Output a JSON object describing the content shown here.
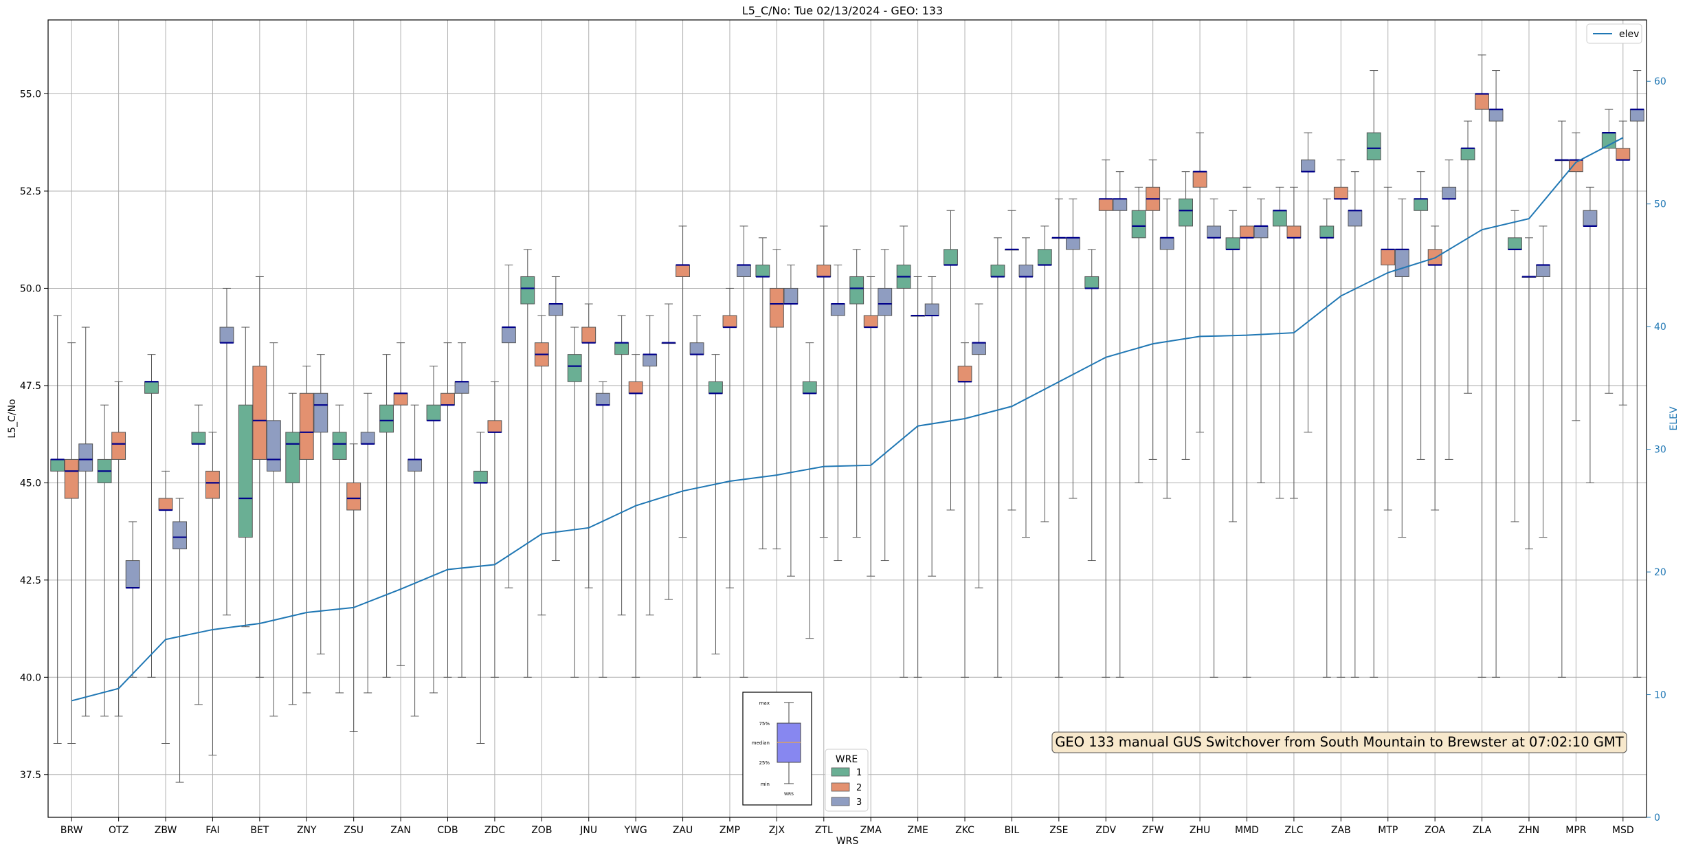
{
  "chart_data": {
    "type": "box",
    "title": "L5_C/No: Tue 02/13/2024 - GEO: 133",
    "xlabel": "WRS",
    "ylabel": "L5_C/No",
    "y2label": "ELEV",
    "ylim": [
      36.4,
      56.9
    ],
    "y2lim": [
      0,
      65
    ],
    "yticks": [
      "37.5",
      "40.0",
      "42.5",
      "45.0",
      "47.5",
      "50.0",
      "52.5",
      "55.0"
    ],
    "y2ticks": [
      "0",
      "10",
      "20",
      "30",
      "40",
      "50",
      "60"
    ],
    "grid": true,
    "legend_wre": {
      "title": "WRE",
      "entries": [
        {
          "name": "1",
          "color": "#6aaf94"
        },
        {
          "name": "2",
          "color": "#e39170"
        },
        {
          "name": "3",
          "color": "#8f9dc1"
        }
      ]
    },
    "legend_elev": {
      "label": "elev",
      "color": "#1f77b4",
      "placement": "top-right"
    },
    "box_key": {
      "labels": [
        "max",
        "75%",
        "median",
        "25%",
        "min"
      ],
      "xlabel": "WRS"
    },
    "annotation": "GEO 133 manual GUS Switchover from South Mountain to Brewster at 07:02:10 GMT",
    "categories": [
      "BRW",
      "OTZ",
      "ZBW",
      "FAI",
      "BET",
      "ZNY",
      "ZSU",
      "ZAN",
      "CDB",
      "ZDC",
      "ZOB",
      "JNU",
      "YWG",
      "ZAU",
      "ZMP",
      "ZJX",
      "ZTL",
      "ZMA",
      "ZME",
      "ZKC",
      "BIL",
      "ZSE",
      "ZDV",
      "ZFW",
      "ZHU",
      "MMD",
      "ZLC",
      "ZAB",
      "MTP",
      "ZOA",
      "ZLA",
      "ZHN",
      "MPR",
      "MSD"
    ],
    "elev": [
      9.5,
      10.5,
      14.5,
      15.3,
      15.8,
      16.7,
      17.1,
      18.6,
      20.2,
      20.6,
      23.1,
      23.6,
      25.4,
      26.6,
      27.4,
      27.9,
      28.6,
      28.7,
      31.9,
      32.5,
      33.5,
      35.5,
      37.5,
      38.6,
      39.2,
      39.3,
      39.5,
      42.5,
      44.4,
      45.6,
      47.9,
      48.8,
      53.4,
      55.4
    ],
    "boxes": [
      [
        {
          "wre": 1,
          "min": 38.3,
          "q1": 45.3,
          "med": 45.6,
          "q3": 45.6,
          "max": 49.3
        },
        {
          "wre": 2,
          "min": 38.3,
          "q1": 44.6,
          "med": 45.3,
          "q3": 45.6,
          "max": 48.6
        },
        {
          "wre": 3,
          "min": 39.0,
          "q1": 45.3,
          "med": 45.6,
          "q3": 46.0,
          "max": 49.0
        }
      ],
      [
        {
          "wre": 1,
          "min": 39.0,
          "q1": 45.0,
          "med": 45.3,
          "q3": 45.6,
          "max": 47.0
        },
        {
          "wre": 2,
          "min": 39.0,
          "q1": 45.6,
          "med": 46.0,
          "q3": 46.3,
          "max": 47.6
        },
        {
          "wre": 3,
          "min": 40.0,
          "q1": 42.3,
          "med": 42.3,
          "q3": 43.0,
          "max": 44.0
        }
      ],
      [
        {
          "wre": 1,
          "min": 40.0,
          "q1": 47.3,
          "med": 47.6,
          "q3": 47.6,
          "max": 48.3
        },
        {
          "wre": 2,
          "min": 38.3,
          "q1": 44.3,
          "med": 44.3,
          "q3": 44.6,
          "max": 45.3
        },
        {
          "wre": 3,
          "min": 37.3,
          "q1": 43.3,
          "med": 43.6,
          "q3": 44.0,
          "max": 44.6
        }
      ],
      [
        {
          "wre": 1,
          "min": 39.3,
          "q1": 46.0,
          "med": 46.0,
          "q3": 46.3,
          "max": 47.0
        },
        {
          "wre": 2,
          "min": 38.0,
          "q1": 44.6,
          "med": 45.0,
          "q3": 45.3,
          "max": 46.3
        },
        {
          "wre": 3,
          "min": 41.6,
          "q1": 48.6,
          "med": 48.6,
          "q3": 49.0,
          "max": 50.0
        }
      ],
      [
        {
          "wre": 1,
          "min": 41.3,
          "q1": 43.6,
          "med": 44.6,
          "q3": 47.0,
          "max": 49.0
        },
        {
          "wre": 2,
          "min": 40.0,
          "q1": 45.6,
          "med": 46.6,
          "q3": 48.0,
          "max": 50.3
        },
        {
          "wre": 3,
          "min": 39.0,
          "q1": 45.3,
          "med": 45.6,
          "q3": 46.6,
          "max": 48.6
        }
      ],
      [
        {
          "wre": 1,
          "min": 39.3,
          "q1": 45.0,
          "med": 46.0,
          "q3": 46.3,
          "max": 47.3
        },
        {
          "wre": 2,
          "min": 39.6,
          "q1": 45.6,
          "med": 46.3,
          "q3": 47.3,
          "max": 48.0
        },
        {
          "wre": 3,
          "min": 40.6,
          "q1": 46.3,
          "med": 47.0,
          "q3": 47.3,
          "max": 48.3
        }
      ],
      [
        {
          "wre": 1,
          "min": 39.6,
          "q1": 45.6,
          "med": 46.0,
          "q3": 46.3,
          "max": 47.0
        },
        {
          "wre": 2,
          "min": 38.6,
          "q1": 44.3,
          "med": 44.6,
          "q3": 45.0,
          "max": 46.0
        },
        {
          "wre": 3,
          "min": 39.6,
          "q1": 46.0,
          "med": 46.0,
          "q3": 46.3,
          "max": 47.3
        }
      ],
      [
        {
          "wre": 1,
          "min": 40.0,
          "q1": 46.3,
          "med": 46.6,
          "q3": 47.0,
          "max": 48.3
        },
        {
          "wre": 2,
          "min": 40.3,
          "q1": 47.0,
          "med": 47.3,
          "q3": 47.3,
          "max": 48.6
        },
        {
          "wre": 3,
          "min": 39.0,
          "q1": 45.3,
          "med": 45.6,
          "q3": 45.6,
          "max": 47.0
        }
      ],
      [
        {
          "wre": 1,
          "min": 39.6,
          "q1": 46.6,
          "med": 46.6,
          "q3": 47.0,
          "max": 48.0
        },
        {
          "wre": 2,
          "min": 40.0,
          "q1": 47.0,
          "med": 47.0,
          "q3": 47.3,
          "max": 48.6
        },
        {
          "wre": 3,
          "min": 40.0,
          "q1": 47.3,
          "med": 47.6,
          "q3": 47.6,
          "max": 48.6
        }
      ],
      [
        {
          "wre": 1,
          "min": 38.3,
          "q1": 45.0,
          "med": 45.0,
          "q3": 45.3,
          "max": 46.3
        },
        {
          "wre": 2,
          "min": 40.0,
          "q1": 46.3,
          "med": 46.3,
          "q3": 46.6,
          "max": 47.6
        },
        {
          "wre": 3,
          "min": 42.3,
          "q1": 48.6,
          "med": 49.0,
          "q3": 49.0,
          "max": 50.6
        }
      ],
      [
        {
          "wre": 1,
          "min": 40.0,
          "q1": 49.6,
          "med": 50.0,
          "q3": 50.3,
          "max": 51.0
        },
        {
          "wre": 2,
          "min": 41.6,
          "q1": 48.0,
          "med": 48.3,
          "q3": 48.6,
          "max": 49.3
        },
        {
          "wre": 3,
          "min": 43.0,
          "q1": 49.3,
          "med": 49.6,
          "q3": 49.6,
          "max": 50.3
        }
      ],
      [
        {
          "wre": 1,
          "min": 40.0,
          "q1": 47.6,
          "med": 48.0,
          "q3": 48.3,
          "max": 49.0
        },
        {
          "wre": 2,
          "min": 42.3,
          "q1": 48.6,
          "med": 48.6,
          "q3": 49.0,
          "max": 49.6
        },
        {
          "wre": 3,
          "min": 40.0,
          "q1": 47.0,
          "med": 47.0,
          "q3": 47.3,
          "max": 47.6
        }
      ],
      [
        {
          "wre": 1,
          "min": 41.6,
          "q1": 48.3,
          "med": 48.6,
          "q3": 48.6,
          "max": 49.3
        },
        {
          "wre": 2,
          "min": 40.0,
          "q1": 47.3,
          "med": 47.3,
          "q3": 47.6,
          "max": 48.3
        },
        {
          "wre": 3,
          "min": 41.6,
          "q1": 48.0,
          "med": 48.3,
          "q3": 48.3,
          "max": 49.3
        }
      ],
      [
        {
          "wre": 1,
          "min": 42.0,
          "q1": 48.6,
          "med": 48.6,
          "q3": 48.6,
          "max": 49.6
        },
        {
          "wre": 2,
          "min": 43.6,
          "q1": 50.3,
          "med": 50.6,
          "q3": 50.6,
          "max": 51.6
        },
        {
          "wre": 3,
          "min": 40.0,
          "q1": 48.3,
          "med": 48.3,
          "q3": 48.6,
          "max": 49.3
        }
      ],
      [
        {
          "wre": 1,
          "min": 40.6,
          "q1": 47.3,
          "med": 47.3,
          "q3": 47.6,
          "max": 48.3
        },
        {
          "wre": 2,
          "min": 42.3,
          "q1": 49.0,
          "med": 49.0,
          "q3": 49.3,
          "max": 50.0
        },
        {
          "wre": 3,
          "min": 40.0,
          "q1": 50.3,
          "med": 50.6,
          "q3": 50.6,
          "max": 51.6
        }
      ],
      [
        {
          "wre": 1,
          "min": 43.3,
          "q1": 50.3,
          "med": 50.3,
          "q3": 50.6,
          "max": 51.3
        },
        {
          "wre": 2,
          "min": 43.3,
          "q1": 49.0,
          "med": 49.6,
          "q3": 50.0,
          "max": 51.0
        },
        {
          "wre": 3,
          "min": 42.6,
          "q1": 49.6,
          "med": 49.6,
          "q3": 50.0,
          "max": 50.6
        }
      ],
      [
        {
          "wre": 1,
          "min": 41.0,
          "q1": 47.3,
          "med": 47.3,
          "q3": 47.6,
          "max": 48.6
        },
        {
          "wre": 2,
          "min": 43.6,
          "q1": 50.3,
          "med": 50.3,
          "q3": 50.6,
          "max": 51.6
        },
        {
          "wre": 3,
          "min": 43.0,
          "q1": 49.3,
          "med": 49.6,
          "q3": 49.6,
          "max": 50.6
        }
      ],
      [
        {
          "wre": 1,
          "min": 43.6,
          "q1": 49.6,
          "med": 50.0,
          "q3": 50.3,
          "max": 51.0
        },
        {
          "wre": 2,
          "min": 42.6,
          "q1": 49.0,
          "med": 49.0,
          "q3": 49.3,
          "max": 50.3
        },
        {
          "wre": 3,
          "min": 43.0,
          "q1": 49.3,
          "med": 49.6,
          "q3": 50.0,
          "max": 51.0
        }
      ],
      [
        {
          "wre": 1,
          "min": 40.0,
          "q1": 50.0,
          "med": 50.3,
          "q3": 50.6,
          "max": 51.6
        },
        {
          "wre": 2,
          "min": 40.0,
          "q1": 49.3,
          "med": 49.3,
          "q3": 49.3,
          "max": 50.3
        },
        {
          "wre": 3,
          "min": 42.6,
          "q1": 49.3,
          "med": 49.3,
          "q3": 49.6,
          "max": 50.3
        }
      ],
      [
        {
          "wre": 1,
          "min": 44.3,
          "q1": 50.6,
          "med": 50.6,
          "q3": 51.0,
          "max": 52.0
        },
        {
          "wre": 2,
          "min": 40.0,
          "q1": 47.6,
          "med": 47.6,
          "q3": 48.0,
          "max": 48.6
        },
        {
          "wre": 3,
          "min": 42.3,
          "q1": 48.3,
          "med": 48.6,
          "q3": 48.6,
          "max": 49.6
        }
      ],
      [
        {
          "wre": 1,
          "min": 40.0,
          "q1": 50.3,
          "med": 50.3,
          "q3": 50.6,
          "max": 51.3
        },
        {
          "wre": 2,
          "min": 44.3,
          "q1": 51.0,
          "med": 51.0,
          "q3": 51.0,
          "max": 52.0
        },
        {
          "wre": 3,
          "min": 43.6,
          "q1": 50.3,
          "med": 50.3,
          "q3": 50.6,
          "max": 51.3
        }
      ],
      [
        {
          "wre": 1,
          "min": 44.0,
          "q1": 50.6,
          "med": 50.6,
          "q3": 51.0,
          "max": 51.6
        },
        {
          "wre": 2,
          "min": 40.0,
          "q1": 51.3,
          "med": 51.3,
          "q3": 51.3,
          "max": 52.3
        },
        {
          "wre": 3,
          "min": 44.6,
          "q1": 51.0,
          "med": 51.3,
          "q3": 51.3,
          "max": 52.3
        }
      ],
      [
        {
          "wre": 1,
          "min": 43.0,
          "q1": 50.0,
          "med": 50.0,
          "q3": 50.3,
          "max": 51.0
        },
        {
          "wre": 2,
          "min": 40.0,
          "q1": 52.0,
          "med": 52.3,
          "q3": 52.3,
          "max": 53.3
        },
        {
          "wre": 3,
          "min": 40.0,
          "q1": 52.0,
          "med": 52.3,
          "q3": 52.3,
          "max": 53.0
        }
      ],
      [
        {
          "wre": 1,
          "min": 45.0,
          "q1": 51.3,
          "med": 51.6,
          "q3": 52.0,
          "max": 52.6
        },
        {
          "wre": 2,
          "min": 45.6,
          "q1": 52.0,
          "med": 52.3,
          "q3": 52.6,
          "max": 53.3
        },
        {
          "wre": 3,
          "min": 44.6,
          "q1": 51.0,
          "med": 51.3,
          "q3": 51.3,
          "max": 52.3
        }
      ],
      [
        {
          "wre": 1,
          "min": 45.6,
          "q1": 51.6,
          "med": 52.0,
          "q3": 52.3,
          "max": 53.0
        },
        {
          "wre": 2,
          "min": 46.3,
          "q1": 52.6,
          "med": 53.0,
          "q3": 53.0,
          "max": 54.0
        },
        {
          "wre": 3,
          "min": 40.0,
          "q1": 51.3,
          "med": 51.3,
          "q3": 51.6,
          "max": 52.3
        }
      ],
      [
        {
          "wre": 1,
          "min": 44.0,
          "q1": 51.0,
          "med": 51.0,
          "q3": 51.3,
          "max": 52.0
        },
        {
          "wre": 2,
          "min": 40.0,
          "q1": 51.3,
          "med": 51.3,
          "q3": 51.6,
          "max": 52.6
        },
        {
          "wre": 3,
          "min": 45.0,
          "q1": 51.3,
          "med": 51.6,
          "q3": 51.6,
          "max": 52.3
        }
      ],
      [
        {
          "wre": 1,
          "min": 44.6,
          "q1": 51.6,
          "med": 52.0,
          "q3": 52.0,
          "max": 52.6
        },
        {
          "wre": 2,
          "min": 44.6,
          "q1": 51.3,
          "med": 51.3,
          "q3": 51.6,
          "max": 52.6
        },
        {
          "wre": 3,
          "min": 46.3,
          "q1": 53.0,
          "med": 53.0,
          "q3": 53.3,
          "max": 54.0
        }
      ],
      [
        {
          "wre": 1,
          "min": 40.0,
          "q1": 51.3,
          "med": 51.3,
          "q3": 51.6,
          "max": 52.3
        },
        {
          "wre": 2,
          "min": 40.0,
          "q1": 52.3,
          "med": 52.3,
          "q3": 52.6,
          "max": 53.3
        },
        {
          "wre": 3,
          "min": 40.0,
          "q1": 51.6,
          "med": 52.0,
          "q3": 52.0,
          "max": 53.0
        }
      ],
      [
        {
          "wre": 1,
          "min": 40.0,
          "q1": 53.3,
          "med": 53.6,
          "q3": 54.0,
          "max": 55.6
        },
        {
          "wre": 2,
          "min": 44.3,
          "q1": 50.6,
          "med": 51.0,
          "q3": 51.0,
          "max": 52.6
        },
        {
          "wre": 3,
          "min": 43.6,
          "q1": 50.3,
          "med": 51.0,
          "q3": 51.0,
          "max": 52.3
        }
      ],
      [
        {
          "wre": 1,
          "min": 45.6,
          "q1": 52.0,
          "med": 52.3,
          "q3": 52.3,
          "max": 53.0
        },
        {
          "wre": 2,
          "min": 44.3,
          "q1": 50.6,
          "med": 50.6,
          "q3": 51.0,
          "max": 51.6
        },
        {
          "wre": 3,
          "min": 45.6,
          "q1": 52.3,
          "med": 52.3,
          "q3": 52.6,
          "max": 53.3
        }
      ],
      [
        {
          "wre": 1,
          "min": 47.3,
          "q1": 53.3,
          "med": 53.6,
          "q3": 53.6,
          "max": 54.3
        },
        {
          "wre": 2,
          "min": 40.0,
          "q1": 54.6,
          "med": 55.0,
          "q3": 55.0,
          "max": 56.0
        },
        {
          "wre": 3,
          "min": 40.0,
          "q1": 54.3,
          "med": 54.6,
          "q3": 54.6,
          "max": 55.6
        }
      ],
      [
        {
          "wre": 1,
          "min": 44.0,
          "q1": 51.0,
          "med": 51.0,
          "q3": 51.3,
          "max": 52.0
        },
        {
          "wre": 2,
          "min": 43.3,
          "q1": 50.3,
          "med": 50.3,
          "q3": 50.3,
          "max": 51.3
        },
        {
          "wre": 3,
          "min": 43.6,
          "q1": 50.3,
          "med": 50.6,
          "q3": 50.6,
          "max": 51.6
        }
      ],
      [
        {
          "wre": 1,
          "min": 40.0,
          "q1": 53.3,
          "med": 53.3,
          "q3": 53.3,
          "max": 54.3
        },
        {
          "wre": 2,
          "min": 46.6,
          "q1": 53.0,
          "med": 53.3,
          "q3": 53.3,
          "max": 54.0
        },
        {
          "wre": 3,
          "min": 45.0,
          "q1": 51.6,
          "med": 51.6,
          "q3": 52.0,
          "max": 52.6
        }
      ],
      [
        {
          "wre": 1,
          "min": 47.3,
          "q1": 53.6,
          "med": 54.0,
          "q3": 54.0,
          "max": 54.6
        },
        {
          "wre": 2,
          "min": 47.0,
          "q1": 53.3,
          "med": 53.3,
          "q3": 53.6,
          "max": 54.3
        },
        {
          "wre": 3,
          "min": 40.0,
          "q1": 54.3,
          "med": 54.6,
          "q3": 54.6,
          "max": 55.6
        }
      ]
    ]
  }
}
